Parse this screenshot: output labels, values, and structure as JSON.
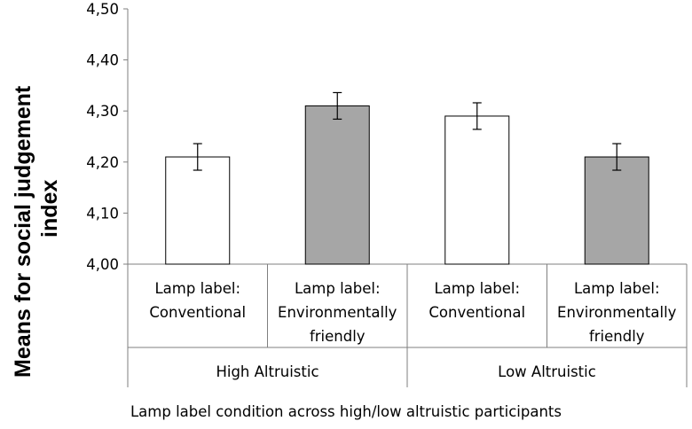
{
  "chart_data": {
    "type": "bar",
    "title": "",
    "ylabel_lines": [
      "Means  for social judgement",
      "index"
    ],
    "xlabel": "Lamp label condition across high/low altruistic participants",
    "ylim": [
      4.0,
      4.5
    ],
    "yticks": [
      "4,00",
      "4,10",
      "4,20",
      "4,30",
      "4,40",
      "4,50"
    ],
    "ytick_values": [
      4.0,
      4.1,
      4.2,
      4.3,
      4.4,
      4.5
    ],
    "grid": false,
    "groups": [
      "High Altruistic",
      "Low Altruistic"
    ],
    "categories": [
      {
        "group": "High Altruistic",
        "lines": [
          "Lamp label:",
          "Conventional"
        ]
      },
      {
        "group": "High Altruistic",
        "lines": [
          "Lamp label:",
          "Environmentally",
          "friendly"
        ]
      },
      {
        "group": "Low Altruistic",
        "lines": [
          "Lamp label:",
          "Conventional"
        ]
      },
      {
        "group": "Low Altruistic",
        "lines": [
          "Lamp label:",
          "Environmentally",
          "friendly"
        ]
      }
    ],
    "values": [
      4.21,
      4.31,
      4.29,
      4.21
    ],
    "error": [
      0.026,
      0.026,
      0.026,
      0.026
    ],
    "bar_colors": [
      "#ffffff",
      "#a6a6a6",
      "#ffffff",
      "#a6a6a6"
    ]
  }
}
